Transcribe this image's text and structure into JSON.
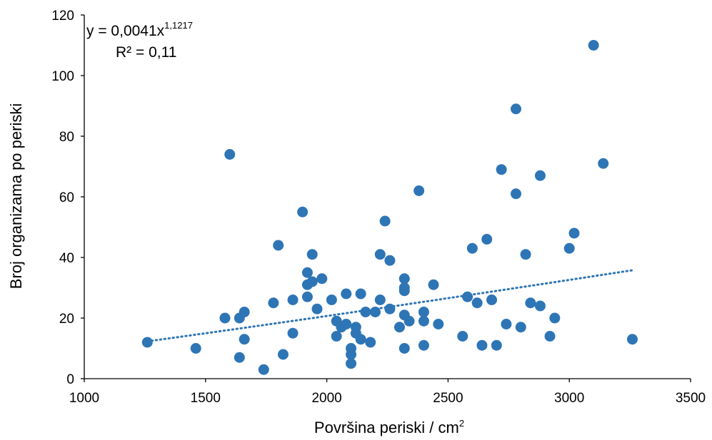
{
  "chart_data": {
    "type": "scatter",
    "xlabel": "Površina periski / cm",
    "xlabel_sup": "2",
    "ylabel": "Broj organizama po periski",
    "xlim": [
      1000,
      3500
    ],
    "ylim": [
      0,
      120
    ],
    "xticks": [
      "1000",
      "1500",
      "2000",
      "2500",
      "3000",
      "3500"
    ],
    "yticks": [
      "0",
      "20",
      "40",
      "60",
      "80",
      "100",
      "120"
    ],
    "grid": false,
    "marker_color": "#2E75B6",
    "trendline": {
      "type": "power",
      "a": 0.0041,
      "b": 1.1217,
      "x_range": [
        1260,
        3260
      ],
      "equation_main": "y = 0,0041x",
      "equation_exponent": "1,1217",
      "r_squared_label": "R² = 0,11"
    },
    "points": [
      [
        1260,
        12
      ],
      [
        1460,
        10
      ],
      [
        1580,
        20
      ],
      [
        1600,
        74
      ],
      [
        1640,
        7
      ],
      [
        1640,
        20
      ],
      [
        1660,
        13
      ],
      [
        1660,
        22
      ],
      [
        1740,
        3
      ],
      [
        1780,
        25
      ],
      [
        1800,
        44
      ],
      [
        1820,
        8
      ],
      [
        1860,
        15
      ],
      [
        1860,
        26
      ],
      [
        1900,
        55
      ],
      [
        1920,
        35
      ],
      [
        1920,
        31
      ],
      [
        1920,
        27
      ],
      [
        1940,
        41
      ],
      [
        1940,
        32
      ],
      [
        1960,
        23
      ],
      [
        1980,
        33
      ],
      [
        2020,
        26
      ],
      [
        2040,
        19
      ],
      [
        2040,
        14
      ],
      [
        2060,
        17
      ],
      [
        2080,
        28
      ],
      [
        2080,
        18
      ],
      [
        2100,
        10
      ],
      [
        2100,
        8
      ],
      [
        2100,
        5
      ],
      [
        2120,
        17
      ],
      [
        2120,
        15
      ],
      [
        2140,
        13
      ],
      [
        2140,
        28
      ],
      [
        2160,
        22
      ],
      [
        2180,
        12
      ],
      [
        2200,
        22
      ],
      [
        2220,
        41
      ],
      [
        2220,
        26
      ],
      [
        2240,
        52
      ],
      [
        2260,
        39
      ],
      [
        2260,
        23
      ],
      [
        2300,
        17
      ],
      [
        2320,
        33
      ],
      [
        2320,
        30
      ],
      [
        2320,
        29
      ],
      [
        2320,
        21
      ],
      [
        2320,
        10
      ],
      [
        2340,
        19
      ],
      [
        2380,
        62
      ],
      [
        2400,
        22
      ],
      [
        2400,
        19
      ],
      [
        2400,
        11
      ],
      [
        2440,
        31
      ],
      [
        2460,
        18
      ],
      [
        2560,
        14
      ],
      [
        2580,
        27
      ],
      [
        2600,
        43
      ],
      [
        2620,
        25
      ],
      [
        2640,
        11
      ],
      [
        2660,
        46
      ],
      [
        2680,
        26
      ],
      [
        2700,
        11
      ],
      [
        2720,
        69
      ],
      [
        2740,
        18
      ],
      [
        2780,
        89
      ],
      [
        2780,
        61
      ],
      [
        2800,
        17
      ],
      [
        2820,
        41
      ],
      [
        2840,
        25
      ],
      [
        2880,
        67
      ],
      [
        2880,
        24
      ],
      [
        2920,
        14
      ],
      [
        2940,
        20
      ],
      [
        3000,
        43
      ],
      [
        3020,
        48
      ],
      [
        3100,
        110
      ],
      [
        3140,
        71
      ],
      [
        3260,
        13
      ]
    ]
  }
}
